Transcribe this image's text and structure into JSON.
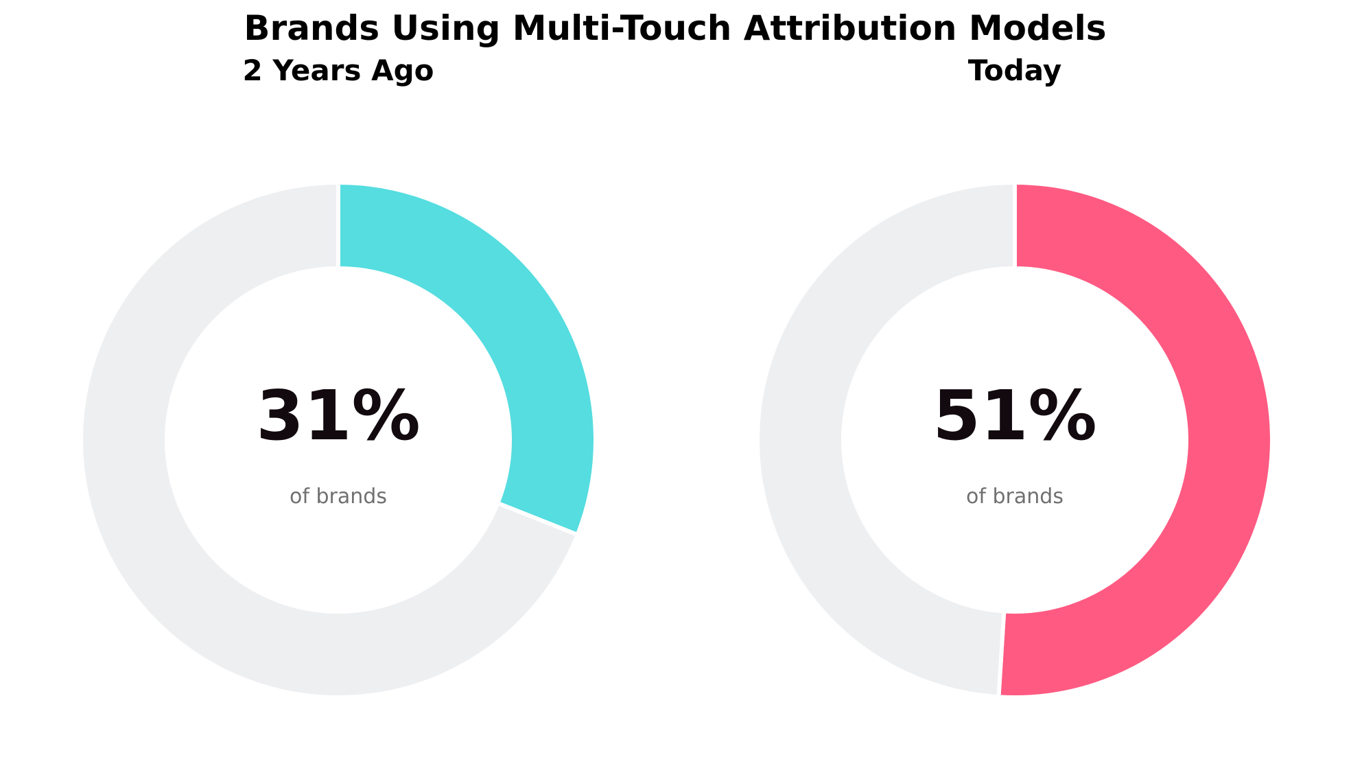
{
  "chart_data": {
    "type": "pie",
    "style": "donut",
    "title": "Brands Using Multi-Touch Attribution Models",
    "unit": "%",
    "charts": [
      {
        "title": "2 Years Ago",
        "value": 31,
        "value_label": "31%",
        "caption": "of brands",
        "slices": [
          {
            "value": 31,
            "color": "#55dde0"
          },
          {
            "value": 69,
            "color": "#eeeff1"
          }
        ]
      },
      {
        "title": "Today",
        "value": 51,
        "value_label": "51%",
        "caption": "of brands",
        "slices": [
          {
            "value": 51,
            "color": "#ff5a82"
          },
          {
            "value": 49,
            "color": "#eeeff1"
          }
        ]
      }
    ]
  }
}
